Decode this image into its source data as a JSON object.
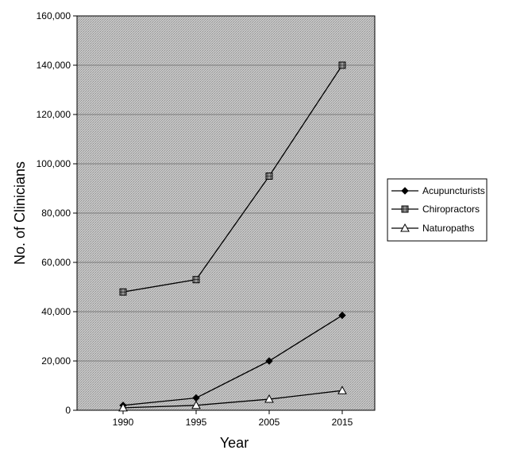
{
  "chart_data": {
    "type": "line",
    "xlabel": "Year",
    "ylabel": "No. of Clinicians",
    "categories": [
      "1990",
      "1995",
      "2005",
      "2015"
    ],
    "ylim": [
      0,
      160000
    ],
    "yticks": [
      0,
      20000,
      40000,
      60000,
      80000,
      100000,
      120000,
      140000,
      160000
    ],
    "ytick_labels": [
      "0",
      "20,000",
      "40,000",
      "60,000",
      "80,000",
      "100,000",
      "120,000",
      "140,000",
      "160,000"
    ],
    "grid": true,
    "legend_position": "right",
    "series": [
      {
        "name": "Acupuncturists",
        "marker": "diamond",
        "values": [
          2000,
          5000,
          20000,
          38500
        ]
      },
      {
        "name": "Chiropractors",
        "marker": "square",
        "values": [
          48000,
          53000,
          95000,
          140000
        ]
      },
      {
        "name": "Naturopaths",
        "marker": "triangle",
        "values": [
          1000,
          2000,
          4500,
          8000
        ]
      }
    ],
    "colors": {
      "plot_bg": "#bdbdbd",
      "line": "#000000",
      "gridline": "#7a7a7a"
    }
  }
}
